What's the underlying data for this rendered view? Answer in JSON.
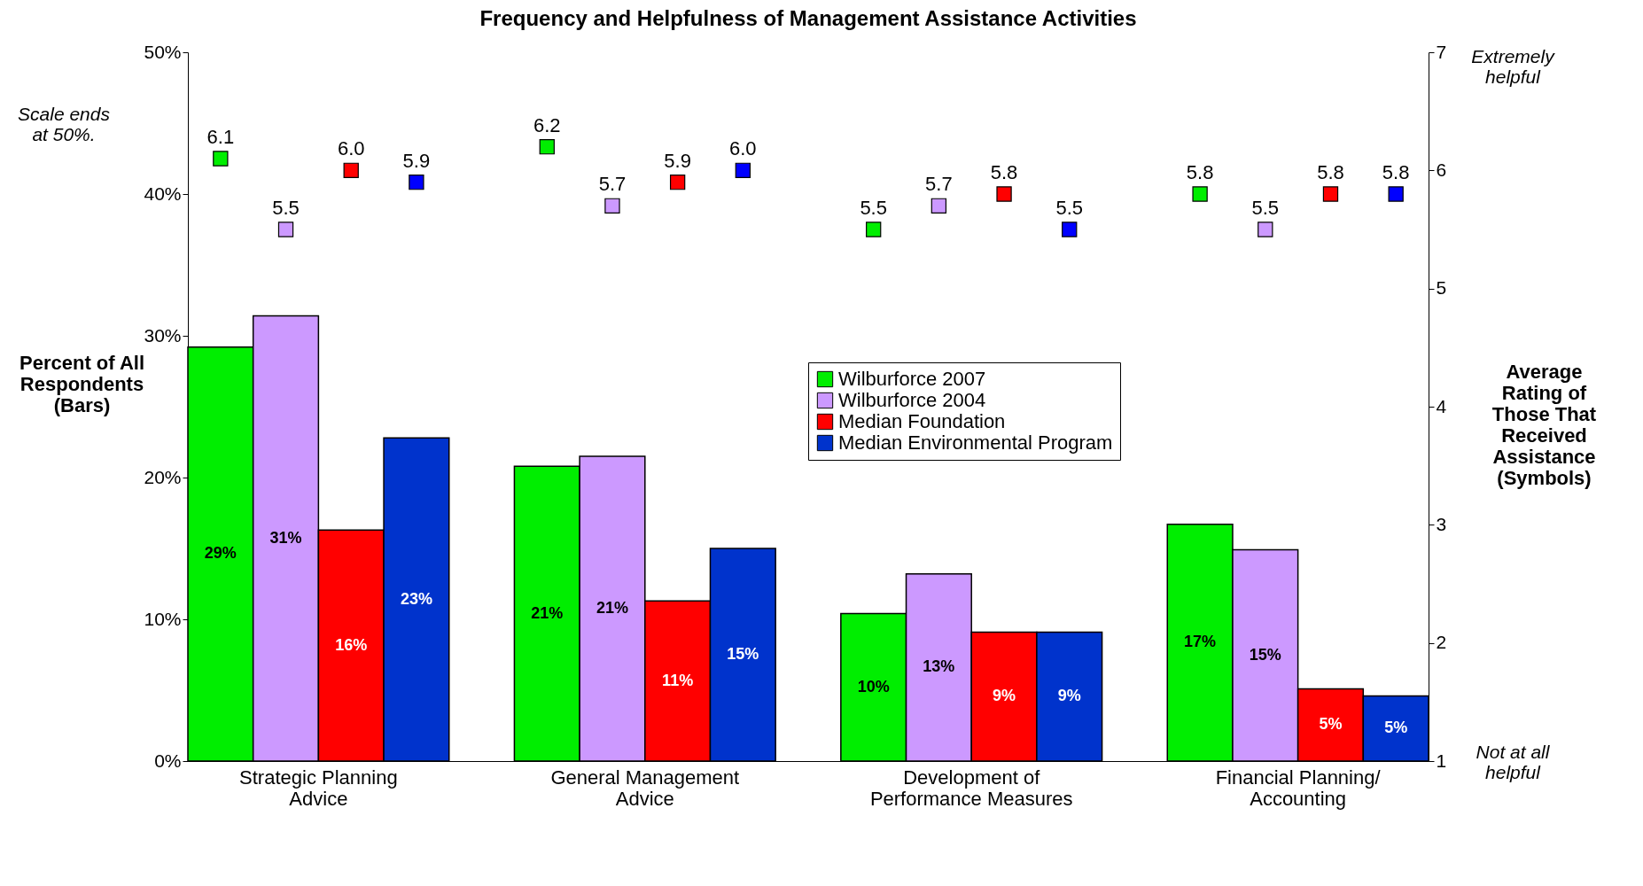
{
  "chart_data": {
    "type": "bar",
    "title": "Frequency and Helpfulness of Management Assistance Activities",
    "categories": [
      "Strategic Planning Advice",
      "General Management Advice",
      "Development of Performance Measures",
      "Financial Planning/ Accounting"
    ],
    "ylabel": "Percent of All Respondents (Bars)",
    "y2label": "Average Rating of Those That Received Assistance (Symbols)",
    "ylim": [
      0,
      50
    ],
    "yticks": [
      {
        "value": 0,
        "label": "0%"
      },
      {
        "value": 10,
        "label": "10%"
      },
      {
        "value": 20,
        "label": "20%"
      },
      {
        "value": 30,
        "label": "30%"
      },
      {
        "value": 40,
        "label": "40%"
      },
      {
        "value": 50,
        "label": "50%"
      }
    ],
    "y2lim": [
      1,
      7
    ],
    "y2ticks": [
      1,
      2,
      3,
      4,
      5,
      6,
      7
    ],
    "legend": "center",
    "grid": false,
    "marker": "square",
    "annotations": [
      "Scale ends at 50%.",
      "Extremely helpful",
      "Not at all helpful"
    ],
    "series": [
      {
        "name": "Wilburforce 2007",
        "color": "#00ee00",
        "values": [
          29.2,
          20.8,
          10.4,
          16.7
        ],
        "value_labels": [
          "29%",
          "21%",
          "10%",
          "17%"
        ]
      },
      {
        "name": "Wilburforce 2004",
        "color": "#cc99ff",
        "values": [
          31.4,
          21.5,
          13.2,
          14.9
        ],
        "value_labels": [
          "31%",
          "21%",
          "13%",
          "15%"
        ]
      },
      {
        "name": "Median Foundation",
        "color": "#ff0000",
        "values": [
          16.3,
          11.3,
          9.1,
          5.1
        ],
        "value_labels": [
          "16%",
          "11%",
          "9%",
          "5%"
        ]
      },
      {
        "name": "Median Environmental Program",
        "color": "#0033cc",
        "values": [
          22.8,
          15.0,
          9.1,
          4.6
        ],
        "value_labels": [
          "23%",
          "15%",
          "9%",
          "5%"
        ]
      },
      {
        "type": "scatter",
        "axis": "y2",
        "color": "#00ee00",
        "values": [
          6.1,
          6.2,
          5.5,
          5.8
        ],
        "value_labels": [
          "6.1",
          "6.2",
          "5.5",
          "5.8"
        ]
      },
      {
        "type": "scatter",
        "axis": "y2",
        "color": "#cc99ff",
        "values": [
          5.5,
          5.7,
          5.7,
          5.5
        ],
        "value_labels": [
          "5.5",
          "5.7",
          "5.7",
          "5.5"
        ]
      },
      {
        "type": "scatter",
        "axis": "y2",
        "color": "#ff0000",
        "values": [
          6.0,
          5.9,
          5.8,
          5.8
        ],
        "value_labels": [
          "6.0",
          "5.9",
          "5.8",
          "5.8"
        ]
      },
      {
        "type": "scatter",
        "axis": "y2",
        "color": "#0000ff",
        "values": [
          5.9,
          6.0,
          5.5,
          5.8
        ],
        "value_labels": [
          "5.9",
          "6.0",
          "5.5",
          "5.8"
        ]
      }
    ]
  }
}
